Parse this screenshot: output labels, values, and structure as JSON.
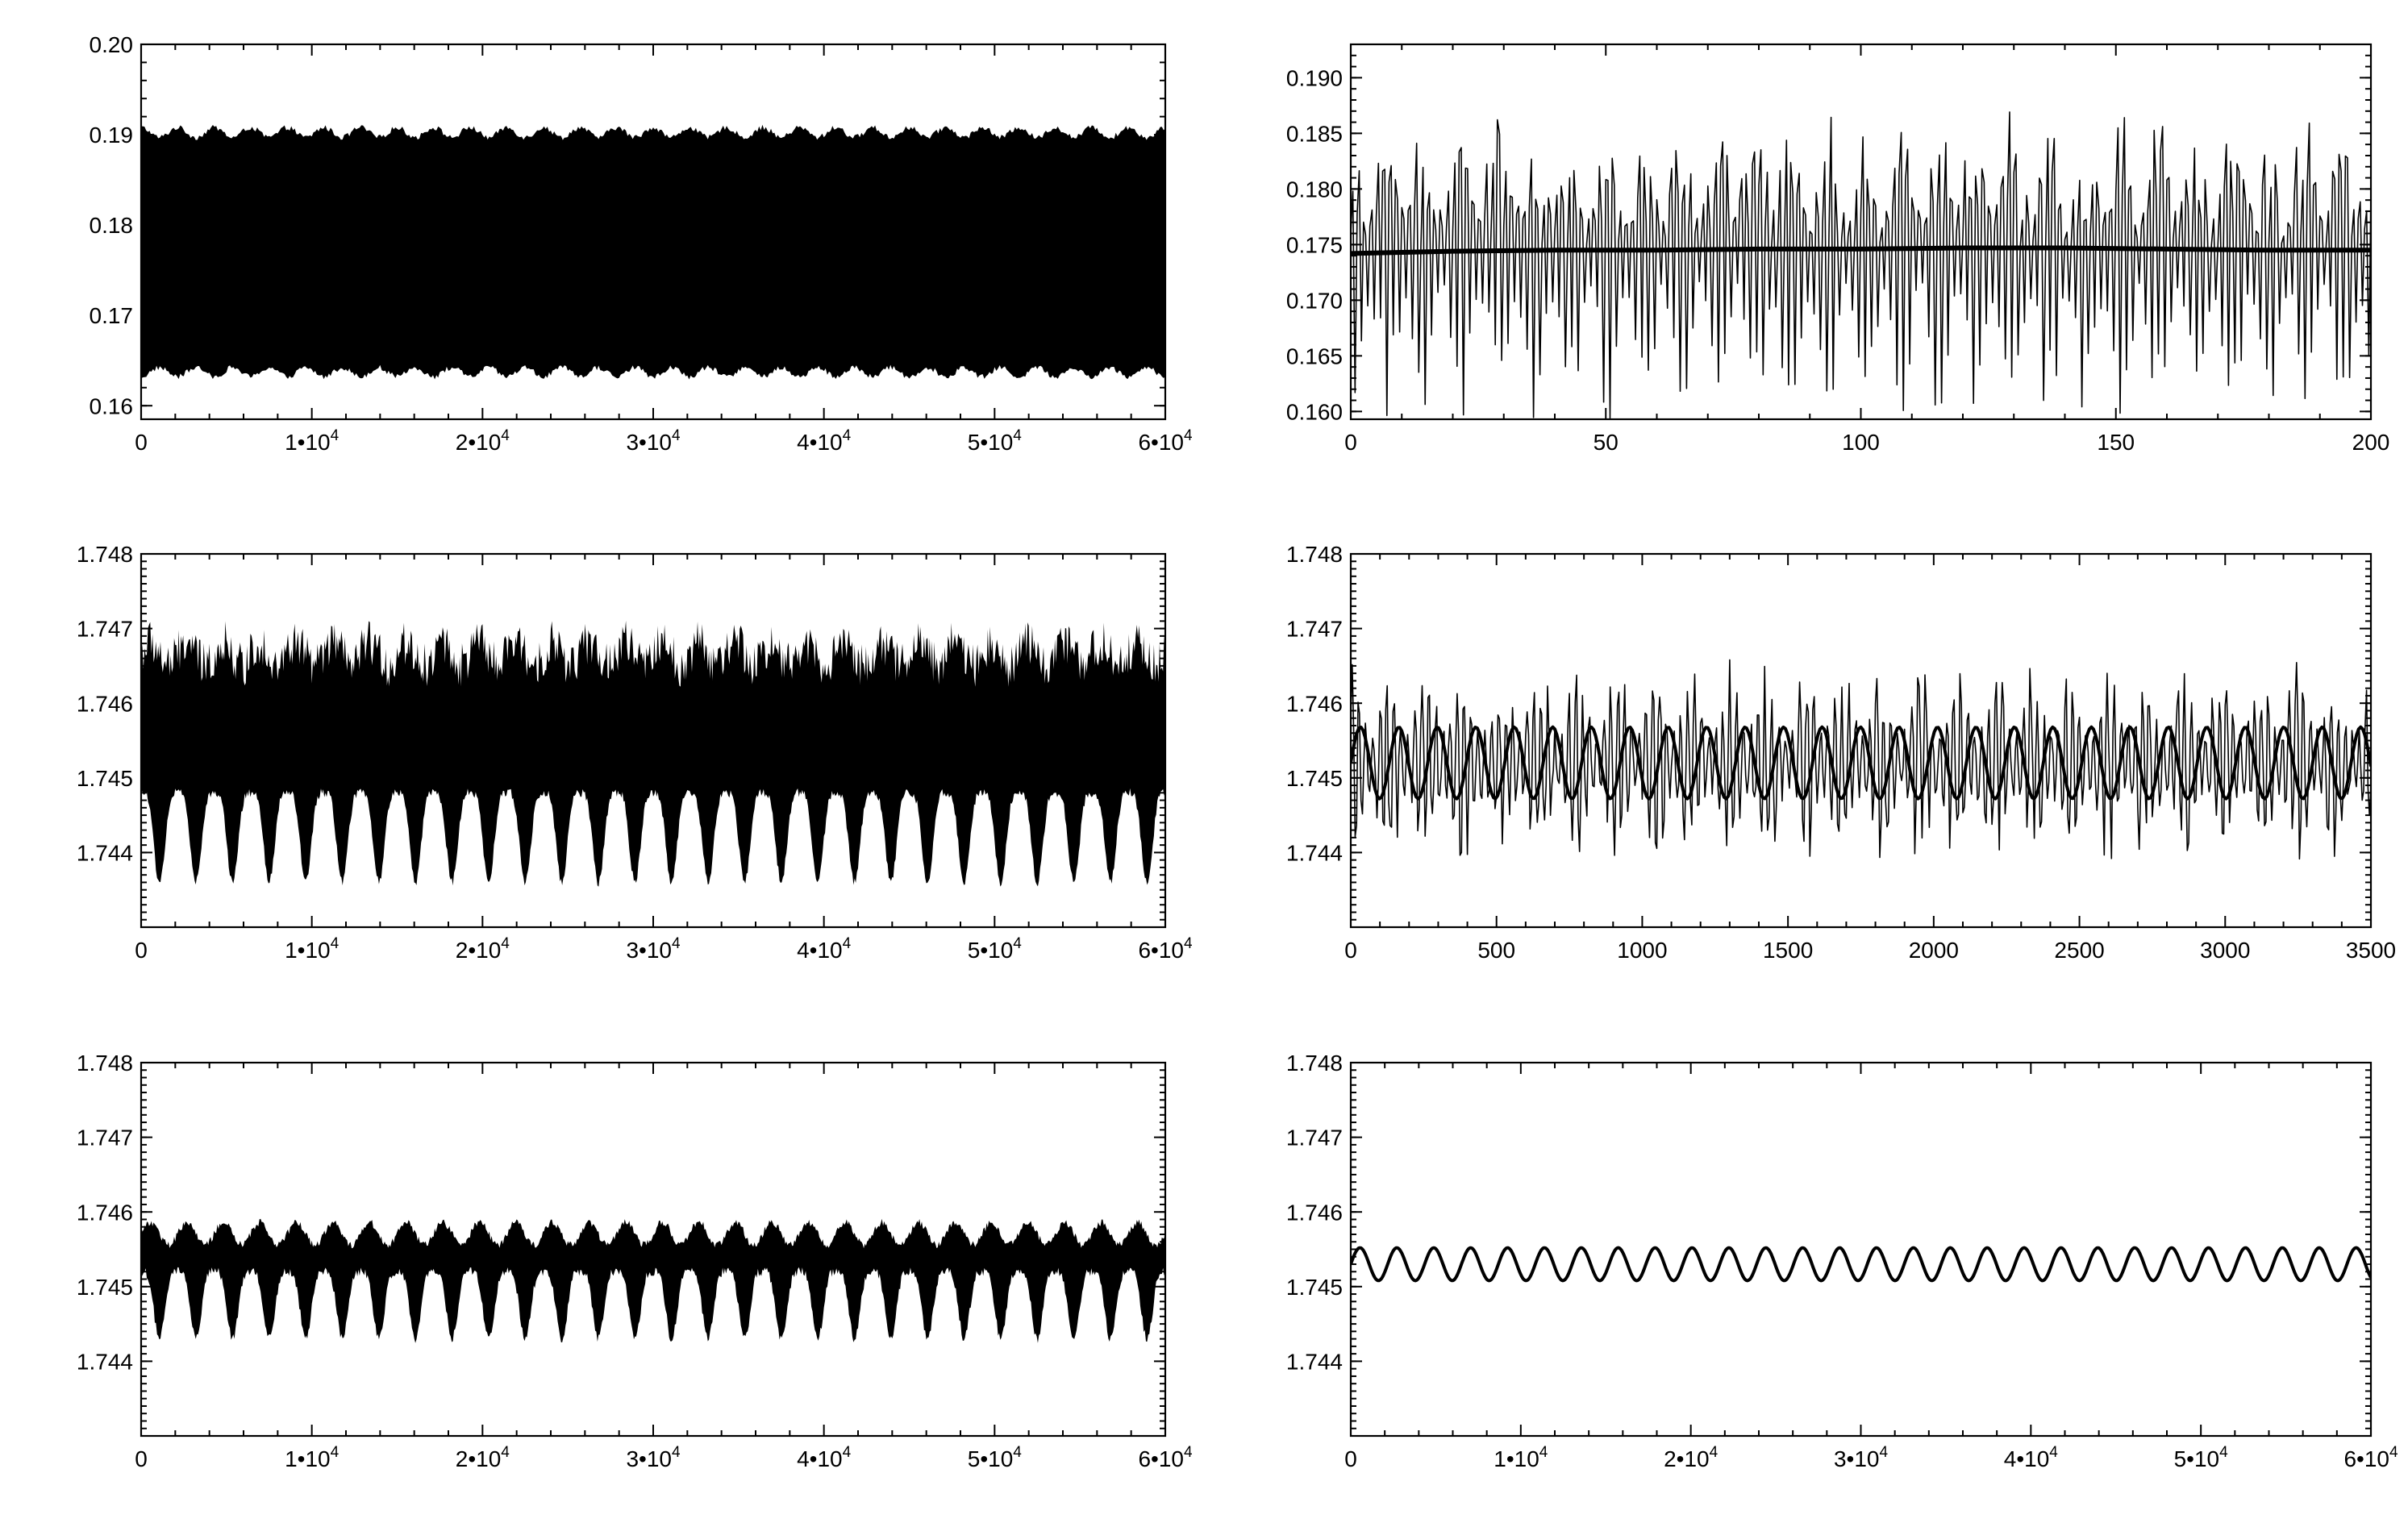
{
  "chart_data": [
    {
      "id": "top-left",
      "type": "area",
      "xlim": [
        0,
        60000
      ],
      "ylim": [
        0.1585,
        0.2
      ],
      "xticks": [
        0,
        10000,
        20000,
        30000,
        40000,
        50000,
        60000
      ],
      "xticklabels": [
        {
          "base": "0"
        },
        {
          "base": "1•10",
          "exp": "4"
        },
        {
          "base": "2•10",
          "exp": "4"
        },
        {
          "base": "3•10",
          "exp": "4"
        },
        {
          "base": "4•10",
          "exp": "4"
        },
        {
          "base": "5•10",
          "exp": "4"
        },
        {
          "base": "6•10",
          "exp": "4"
        }
      ],
      "yticks": [
        0.16,
        0.17,
        0.18,
        0.19,
        0.2
      ],
      "yticklabels": [
        "0.16",
        "0.17",
        "0.18",
        "0.19",
        "0.20"
      ],
      "yminor_step": 0.002,
      "series": [
        {
          "style": "band",
          "center": 0.1765,
          "half_width_min": 0.0132,
          "half_width_max": 0.0143,
          "modulation_cycles": 28
        }
      ]
    },
    {
      "id": "top-right",
      "type": "line",
      "xlim": [
        0,
        200
      ],
      "ylim": [
        0.1593,
        0.193
      ],
      "xticks": [
        0,
        50,
        100,
        150,
        200
      ],
      "xticklabels": [
        {
          "base": "0"
        },
        {
          "base": "50"
        },
        {
          "base": "100"
        },
        {
          "base": "150"
        },
        {
          "base": "200"
        }
      ],
      "yticks": [
        0.16,
        0.165,
        0.17,
        0.175,
        0.18,
        0.185,
        0.19
      ],
      "yticklabels": [
        "0.160",
        "0.165",
        "0.170",
        "0.175",
        "0.180",
        "0.185",
        "0.190"
      ],
      "yminor_step": 0.001,
      "series": [
        {
          "style": "oscillation",
          "center": 0.1748,
          "amp_min": 0.0055,
          "amp_max": 0.0165,
          "period": 1.25,
          "beat_period": 7.2,
          "samples": 480
        },
        {
          "style": "smooth",
          "values": [
            0.1742,
            0.1744,
            0.1745,
            0.1745,
            0.1746,
            0.1746,
            0.1747,
            0.1747,
            0.1746,
            0.1745,
            0.1745
          ]
        }
      ]
    },
    {
      "id": "middle-left",
      "type": "area",
      "xlim": [
        0,
        60000
      ],
      "ylim": [
        1.743,
        1.748
      ],
      "xticks": [
        0,
        10000,
        20000,
        30000,
        40000,
        50000,
        60000
      ],
      "xticklabels": [
        {
          "base": "0"
        },
        {
          "base": "1•10",
          "exp": "4"
        },
        {
          "base": "2•10",
          "exp": "4"
        },
        {
          "base": "3•10",
          "exp": "4"
        },
        {
          "base": "4•10",
          "exp": "4"
        },
        {
          "base": "5•10",
          "exp": "4"
        },
        {
          "base": "6•10",
          "exp": "4"
        }
      ],
      "yticks": [
        1.744,
        1.745,
        1.746,
        1.747,
        1.748
      ],
      "yticklabels": [
        "1.744",
        "1.745",
        "1.746",
        "1.747",
        "1.748"
      ],
      "yminor_step": 0.0001,
      "series": [
        {
          "style": "band",
          "upper_base": 1.7466,
          "upper_jitter": 0.0006,
          "lower_mid": 1.7448,
          "lower_deep": 1.7436,
          "modulation_cycles": 28
        }
      ]
    },
    {
      "id": "middle-right",
      "type": "line",
      "xlim": [
        0,
        3500
      ],
      "ylim": [
        1.743,
        1.748
      ],
      "xticks": [
        0,
        500,
        1000,
        1500,
        2000,
        2500,
        3000,
        3500
      ],
      "xticklabels": [
        {
          "base": "0"
        },
        {
          "base": "500"
        },
        {
          "base": "1000"
        },
        {
          "base": "1500"
        },
        {
          "base": "2000"
        },
        {
          "base": "2500"
        },
        {
          "base": "3000"
        },
        {
          "base": "3500"
        }
      ],
      "yticks": [
        1.744,
        1.745,
        1.746,
        1.747,
        1.748
      ],
      "yticklabels": [
        "1.744",
        "1.745",
        "1.746",
        "1.747",
        "1.748"
      ],
      "yminor_step": 0.0001,
      "series": [
        {
          "style": "oscillation",
          "center": 1.7452,
          "amp_min": 0.0005,
          "amp_max": 0.0015,
          "period": 24,
          "beat_period": 130,
          "samples": 700
        },
        {
          "style": "smooth-sine",
          "center": 1.7452,
          "amplitude": 0.00048,
          "period": 132,
          "samples": 500
        }
      ]
    },
    {
      "id": "bottom-left",
      "type": "area",
      "xlim": [
        0,
        60000
      ],
      "ylim": [
        1.743,
        1.748
      ],
      "xticks": [
        0,
        10000,
        20000,
        30000,
        40000,
        50000,
        60000
      ],
      "xticklabels": [
        {
          "base": "0"
        },
        {
          "base": "1•10",
          "exp": "4"
        },
        {
          "base": "2•10",
          "exp": "4"
        },
        {
          "base": "3•10",
          "exp": "4"
        },
        {
          "base": "4•10",
          "exp": "4"
        },
        {
          "base": "5•10",
          "exp": "4"
        },
        {
          "base": "6•10",
          "exp": "4"
        }
      ],
      "yticks": [
        1.744,
        1.745,
        1.746,
        1.747,
        1.748
      ],
      "yticklabels": [
        "1.744",
        "1.745",
        "1.746",
        "1.747",
        "1.748"
      ],
      "yminor_step": 0.0001,
      "series": [
        {
          "style": "band",
          "upper_base": 1.7457,
          "upper_jitter": 0.0001,
          "lower_mid": 1.7452,
          "lower_deep": 1.7443,
          "modulation_cycles": 28
        }
      ]
    },
    {
      "id": "bottom-right",
      "type": "line",
      "xlim": [
        0,
        60000
      ],
      "ylim": [
        1.743,
        1.748
      ],
      "xticks": [
        0,
        10000,
        20000,
        30000,
        40000,
        50000,
        60000
      ],
      "xticklabels": [
        {
          "base": "0"
        },
        {
          "base": "1•10",
          "exp": "4"
        },
        {
          "base": "2•10",
          "exp": "4"
        },
        {
          "base": "3•10",
          "exp": "4"
        },
        {
          "base": "4•10",
          "exp": "4"
        },
        {
          "base": "5•10",
          "exp": "4"
        },
        {
          "base": "6•10",
          "exp": "4"
        }
      ],
      "yticks": [
        1.744,
        1.745,
        1.746,
        1.747,
        1.748
      ],
      "yticklabels": [
        "1.744",
        "1.745",
        "1.746",
        "1.747",
        "1.748"
      ],
      "yminor_step": 0.0001,
      "series": [
        {
          "style": "smooth-sine",
          "center": 1.7453,
          "amplitude": 0.00022,
          "period": 2170,
          "samples": 900
        }
      ]
    }
  ]
}
